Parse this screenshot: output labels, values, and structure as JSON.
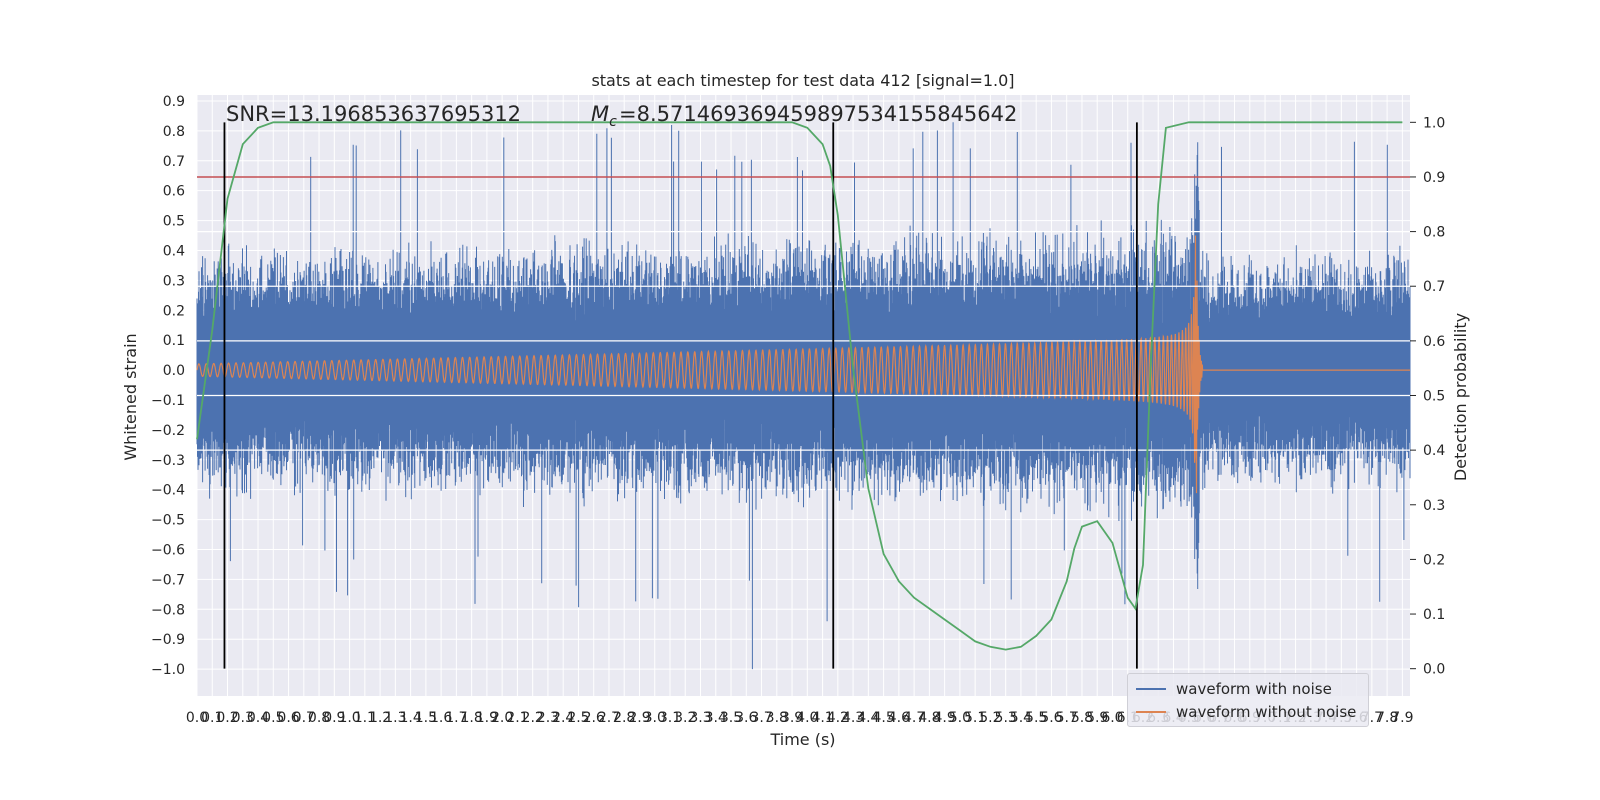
{
  "chart_data": {
    "type": "line",
    "title": "stats at each timestep for test data 412 [signal=1.0]",
    "xlabel": "Time (s)",
    "ylabel": "Whitened strain",
    "y2label": "Detection probability",
    "xlim": [
      0.0,
      7.95
    ],
    "ylim": [
      -1.09,
      0.92
    ],
    "y2lim": [
      -0.05,
      1.05
    ],
    "x_ticks": [
      "0.0",
      "0.1",
      "0.2",
      "0.3",
      "0.4",
      "0.5",
      "0.6",
      "0.7",
      "0.8",
      "0.9",
      "1.0",
      "1.1",
      "1.2",
      "1.3",
      "1.4",
      "1.5",
      "1.6",
      "1.7",
      "1.8",
      "1.9",
      "2.0",
      "2.1",
      "2.2",
      "2.3",
      "2.4",
      "2.5",
      "2.6",
      "2.7",
      "2.8",
      "2.9",
      "3.0",
      "3.1",
      "3.2",
      "3.3",
      "3.4",
      "3.5",
      "3.6",
      "3.7",
      "3.8",
      "3.9",
      "4.0",
      "4.1",
      "4.2",
      "4.3",
      "4.4",
      "4.5",
      "4.6",
      "4.7",
      "4.8",
      "4.9",
      "5.0",
      "5.1",
      "5.2",
      "5.3",
      "5.4",
      "5.5",
      "5.6",
      "5.7",
      "5.8",
      "5.9",
      "6.0",
      "6.1",
      "6.2",
      "6.3",
      "6.4",
      "6.5",
      "6.6",
      "6.7",
      "6.8",
      "6.9",
      "7.0",
      "7.1",
      "7.2",
      "7.3",
      "7.4",
      "7.5",
      "7.6",
      "7.7",
      "7.8",
      "7.9"
    ],
    "y_ticks": [
      "0.9",
      "0.8",
      "0.7",
      "0.6",
      "0.5",
      "0.4",
      "0.3",
      "0.2",
      "0.1",
      "0.0",
      "−0.1",
      "−0.2",
      "−0.3",
      "−0.4",
      "−0.5",
      "−0.6",
      "−0.7",
      "−0.8",
      "−0.9",
      "−1.0"
    ],
    "y2_ticks": [
      "1.0",
      "0.9",
      "0.8",
      "0.7",
      "0.6",
      "0.5",
      "0.4",
      "0.3",
      "0.2",
      "0.1",
      "0.0"
    ],
    "threshold": 0.9,
    "threshold_color": "#c44e52",
    "vlines_x": [
      0.18,
      4.17,
      6.16
    ],
    "detection_probability": {
      "t": [
        0.0,
        0.1,
        0.2,
        0.3,
        0.4,
        0.5,
        0.6,
        0.8,
        1.0,
        1.5,
        2.0,
        2.5,
        3.0,
        3.5,
        3.8,
        3.9,
        4.0,
        4.1,
        4.15,
        4.2,
        4.3,
        4.4,
        4.5,
        4.6,
        4.7,
        4.8,
        4.9,
        5.0,
        5.1,
        5.2,
        5.3,
        5.4,
        5.5,
        5.6,
        5.7,
        5.75,
        5.8,
        5.9,
        6.0,
        6.05,
        6.1,
        6.15,
        6.2,
        6.25,
        6.3,
        6.35,
        6.5,
        7.0,
        7.5,
        7.9
      ],
      "values": [
        0.42,
        0.62,
        0.86,
        0.96,
        0.99,
        1.0,
        1.0,
        1.0,
        1.0,
        1.0,
        1.0,
        1.0,
        1.0,
        1.0,
        1.0,
        1.0,
        0.99,
        0.96,
        0.92,
        0.83,
        0.55,
        0.33,
        0.21,
        0.16,
        0.13,
        0.11,
        0.09,
        0.07,
        0.05,
        0.04,
        0.035,
        0.04,
        0.06,
        0.09,
        0.16,
        0.22,
        0.26,
        0.27,
        0.23,
        0.18,
        0.13,
        0.11,
        0.19,
        0.55,
        0.85,
        0.99,
        1.0,
        1.0,
        1.0,
        1.0
      ]
    },
    "series": [
      {
        "name": "waveform with noise",
        "color": "#4c72b0",
        "envelope_abs": 0.42,
        "peak_max": 0.83,
        "peak_min": -1.0
      },
      {
        "name": "waveform without noise",
        "color": "#dd8452",
        "amplitude_start": 0.02,
        "amplitude_peak": 0.44,
        "merger_time": 6.55
      },
      {
        "name": "detection probability",
        "color": "#55a868"
      }
    ],
    "legend_position": "lower-right",
    "annotations": {
      "snr": "SNR=13.196853637695312",
      "chirp_mass": "=8.571469369459897534155845642"
    }
  }
}
